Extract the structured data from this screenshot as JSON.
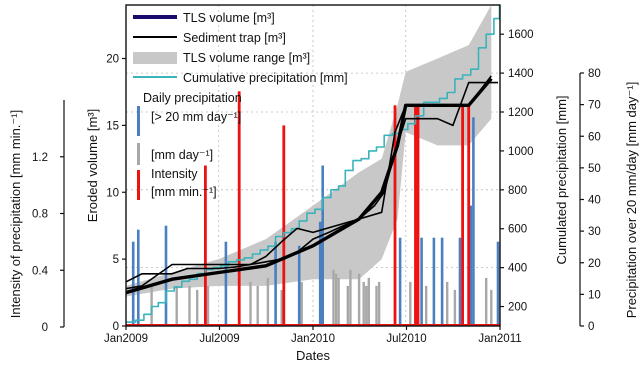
{
  "chart_data": {
    "type": "line",
    "xlabel": "Dates",
    "x_ticks": [
      "Jan2009",
      "Jul2009",
      "Jan2010",
      "Jul2010",
      "Jan2011"
    ],
    "axes": {
      "eroded_volume": {
        "label": "Eroded volume [m³]",
        "ylim": [
          0,
          24
        ],
        "ticks": [
          "0",
          "5",
          "10",
          "15",
          "20"
        ]
      },
      "cumulated_precip": {
        "label": "Cumulated precipitation [mm]",
        "ylim": [
          100,
          1750
        ],
        "ticks": [
          "200",
          "400",
          "600",
          "800",
          "1000",
          "1200",
          "1400",
          "1600"
        ]
      },
      "intensity": {
        "label": "Intensity of precipitation [mm min.⁻¹]",
        "ylim": [
          0,
          1.6
        ],
        "ticks": [
          "0",
          "0.4",
          "0.8",
          "1.2"
        ]
      },
      "daily_precip": {
        "label": "Precipitation over 20 mm/day  [mm day⁻¹]",
        "ylim": [
          0,
          80
        ],
        "ticks": [
          "0",
          "10",
          "20",
          "30",
          "40",
          "50",
          "60",
          "70",
          "80"
        ]
      }
    },
    "legend": {
      "placement": "top-left",
      "tls_volume": "TLS volume [m³]",
      "sediment_trap": "Sediment trap [m³]",
      "tls_range": "TLS volume range [m³]",
      "cum_precip": "Cumulative precipitation [mm]",
      "daily_title": "Daily precipitation",
      "daily_gt20": "[> 20 mm day⁻¹]",
      "daily_all": "[mm day⁻¹]",
      "intensity_title": "Intensity",
      "intensity_unit": "[mm min.⁻¹]"
    },
    "colors": {
      "tls": "#000000",
      "tls_legend": "#1a0a6b",
      "trap": "#000000",
      "range": "#c8c8c8",
      "cum": "#3ab3bb",
      "daily_high": "#4a7fc0",
      "daily_low": "#a8a8a8",
      "intensity": "#ee1111"
    },
    "series": {
      "tls_volume": {
        "x": [
          "2009-01-01",
          "2009-04-01",
          "2009-07-01",
          "2009-10-01",
          "2010-01-01",
          "2010-04-01",
          "2010-05-15",
          "2010-06-15",
          "2010-07-01",
          "2010-09-01",
          "2010-11-01",
          "2010-12-15"
        ],
        "y": [
          2.5,
          3.5,
          4.0,
          4.5,
          6.0,
          8.0,
          10.0,
          13.5,
          16.5,
          16.5,
          16.5,
          18.5
        ]
      },
      "tls_range_upper": {
        "x": [
          "2009-01-01",
          "2009-04-01",
          "2009-07-01",
          "2009-10-01",
          "2010-01-01",
          "2010-04-01",
          "2010-05-15",
          "2010-06-15",
          "2010-07-01",
          "2010-09-01",
          "2010-11-01",
          "2010-12-15"
        ],
        "y": [
          3.0,
          4.0,
          5.0,
          6.5,
          9.0,
          11.5,
          12.5,
          16.5,
          19.0,
          20.0,
          21.0,
          24.0
        ]
      },
      "tls_range_lower": {
        "x": [
          "2009-01-01",
          "2009-04-01",
          "2009-07-01",
          "2009-10-01",
          "2010-01-01",
          "2010-04-01",
          "2010-05-15",
          "2010-06-15",
          "2010-07-01",
          "2010-09-01",
          "2010-11-01",
          "2010-12-15"
        ],
        "y": [
          2.2,
          2.8,
          3.0,
          3.0,
          3.5,
          3.5,
          5.0,
          8.0,
          14.5,
          13.5,
          13.5,
          15.5
        ]
      },
      "sediment_trap": {
        "x": [
          "2009-01-01",
          "2009-02-01",
          "2009-03-01",
          "2009-04-01",
          "2009-05-01",
          "2009-06-01",
          "2009-07-01",
          "2009-08-01",
          "2009-09-01",
          "2009-10-01",
          "2009-11-01",
          "2009-12-01",
          "2010-01-01",
          "2010-02-01",
          "2010-03-01",
          "2010-04-01",
          "2010-05-01",
          "2010-05-20",
          "2010-06-10",
          "2010-07-01",
          "2010-08-01",
          "2010-09-01",
          "2010-10-01",
          "2010-11-01",
          "2010-12-01",
          "2010-12-28"
        ],
        "y": [
          3.3,
          3.9,
          3.9,
          3.9,
          4.3,
          4.3,
          4.3,
          4.4,
          4.6,
          4.8,
          5.0,
          5.5,
          6.5,
          7.0,
          7.5,
          8.0,
          9.0,
          10.0,
          13.0,
          15.5,
          15.5,
          15.5,
          15.0,
          18.2,
          18.2,
          18.2
        ]
      },
      "sediment_trap_2": {
        "x": [
          "2009-01-01",
          "2009-02-01",
          "2009-04-01",
          "2009-06-01",
          "2009-07-01",
          "2009-08-01",
          "2009-09-01",
          "2009-10-01",
          "2009-11-01",
          "2009-12-01",
          "2010-01-01",
          "2010-04-01",
          "2010-05-15",
          "2010-06-10",
          "2010-07-01",
          "2010-09-01",
          "2010-11-01",
          "2010-12-15"
        ],
        "y": [
          2.8,
          3.0,
          4.6,
          4.6,
          4.6,
          4.6,
          4.6,
          5.2,
          6.3,
          7.3,
          7.0,
          8.0,
          8.5,
          14.5,
          16.5,
          16.5,
          16.5,
          18.7
        ]
      },
      "cumulative_precipitation": {
        "x": [
          "2009-01-01",
          "2009-01-20",
          "2009-02-05",
          "2009-02-20",
          "2009-03-05",
          "2009-03-20",
          "2009-04-05",
          "2009-04-20",
          "2009-05-05",
          "2009-05-20",
          "2009-06-05",
          "2009-06-20",
          "2009-07-05",
          "2009-07-20",
          "2009-08-05",
          "2009-08-20",
          "2009-09-05",
          "2009-09-20",
          "2009-10-05",
          "2009-10-20",
          "2009-11-05",
          "2009-11-20",
          "2009-12-05",
          "2009-12-20",
          "2010-01-05",
          "2010-01-20",
          "2010-02-05",
          "2010-02-20",
          "2010-03-05",
          "2010-03-20",
          "2010-04-05",
          "2010-04-20",
          "2010-05-05",
          "2010-05-20",
          "2010-06-05",
          "2010-06-20",
          "2010-07-05",
          "2010-07-20",
          "2010-08-05",
          "2010-08-20",
          "2010-09-05",
          "2010-09-20",
          "2010-10-05",
          "2010-10-20",
          "2010-11-05",
          "2010-11-20",
          "2010-12-05",
          "2010-12-20",
          "2010-12-31"
        ],
        "y": [
          120,
          130,
          160,
          200,
          220,
          280,
          300,
          330,
          340,
          370,
          390,
          400,
          410,
          430,
          440,
          450,
          470,
          490,
          510,
          560,
          580,
          600,
          640,
          680,
          700,
          760,
          800,
          820,
          900,
          950,
          960,
          1000,
          1020,
          1080,
          1090,
          1110,
          1140,
          1180,
          1250,
          1250,
          1270,
          1300,
          1370,
          1390,
          1420,
          1530,
          1600,
          1680,
          1750
        ]
      },
      "daily_precip_high": {
        "x": [
          "2009-01-15",
          "2009-01-25",
          "2009-03-20",
          "2009-07-15",
          "2009-10-20",
          "2009-12-05",
          "2010-01-15",
          "2010-01-20",
          "2010-06-20",
          "2010-08-01",
          "2010-08-25",
          "2010-09-10",
          "2010-10-15",
          "2010-11-05",
          "2010-11-10",
          "2010-12-28"
        ],
        "y": [
          21,
          24,
          25,
          21,
          21,
          20,
          26,
          40,
          22,
          22,
          22,
          22,
          22,
          30,
          52,
          21
        ]
      },
      "daily_precip_low": {
        "x": [
          "2009-02-20",
          "2009-04-10",
          "2009-05-05",
          "2009-05-20",
          "2009-06-05",
          "2009-06-10",
          "2009-09-01",
          "2009-09-15",
          "2009-10-05",
          "2009-11-01",
          "2009-12-10",
          "2010-02-10",
          "2010-02-15",
          "2010-02-20",
          "2010-03-10",
          "2010-03-15",
          "2010-04-01",
          "2010-04-10",
          "2010-04-15",
          "2010-04-20",
          "2010-05-05",
          "2010-05-10",
          "2010-07-10",
          "2010-07-20",
          "2010-08-10",
          "2010-09-20",
          "2010-10-05",
          "2010-12-05",
          "2010-12-15"
        ],
        "y": [
          10,
          10,
          10,
          9,
          9,
          10,
          11,
          10,
          12,
          9,
          11,
          14,
          13,
          12,
          10,
          14,
          13,
          11,
          10,
          12,
          10,
          11,
          11,
          9,
          10,
          11,
          9,
          12,
          9
        ]
      },
      "intensity": {
        "x": [
          "2009-06-05",
          "2009-08-10",
          "2009-11-05",
          "2010-06-10",
          "2010-07-20",
          "2010-07-25",
          "2010-10-20",
          "2010-11-01"
        ],
        "y": [
          0.8,
          1.17,
          1.0,
          1.1,
          1.1,
          1.1,
          1.1,
          1.1
        ]
      }
    }
  }
}
